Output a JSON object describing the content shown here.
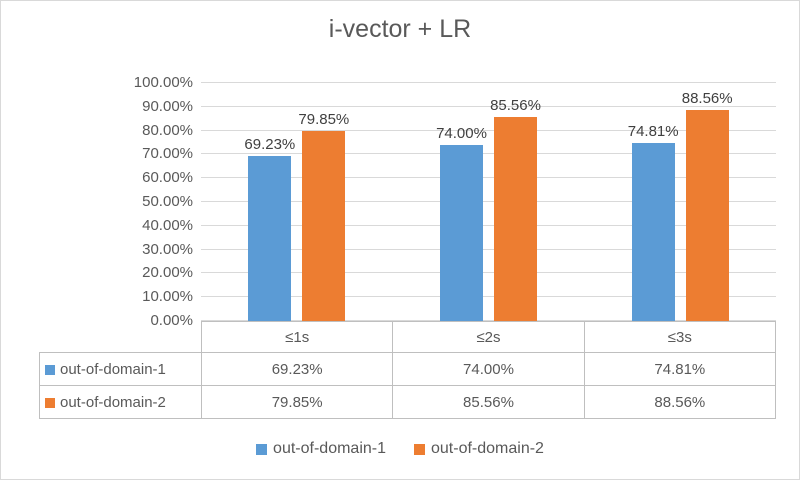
{
  "chart_data": {
    "type": "bar",
    "title": "i-vector + LR",
    "categories": [
      "≤1s",
      "≤2s",
      "≤3s"
    ],
    "series": [
      {
        "name": "out-of-domain-1",
        "color": "#5B9BD5",
        "values": [
          69.23,
          74.0,
          74.81
        ]
      },
      {
        "name": "out-of-domain-2",
        "color": "#ED7D31",
        "values": [
          79.85,
          85.56,
          88.56
        ]
      }
    ],
    "ylim": [
      0,
      100
    ],
    "ytick_step": 10,
    "tick_format": "0.00%",
    "value_format": "0.00%",
    "grid": true,
    "legend_position": "bottom",
    "show_data_table": true,
    "colors": {
      "title_text": "#595959",
      "axis_text": "#595959",
      "data_label_text": "#404040",
      "gridline": "#D9D9D9",
      "table_border": "#BFBFBF",
      "chart_border": "#D9D9D9"
    }
  }
}
